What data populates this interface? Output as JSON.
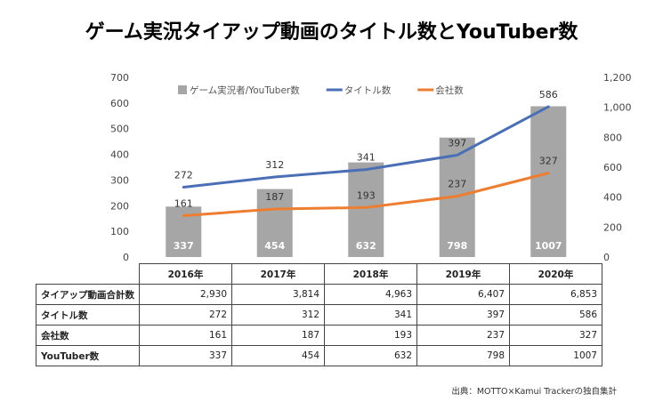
{
  "title": "ゲーム実況タイアップ動画のタイトル数とYouTuber数",
  "source": "出典：MOTTO×Kamui Trackerの独自集計",
  "table": {
    "columns": [
      "2016年",
      "2017年",
      "2018年",
      "2019年",
      "2020年"
    ],
    "rows": [
      {
        "label": "タイアップ動画合計数",
        "values": [
          "2,930",
          "3,814",
          "4,963",
          "6,407",
          "6,853"
        ]
      },
      {
        "label": "タイトル数",
        "values": [
          "272",
          "312",
          "341",
          "397",
          "586"
        ]
      },
      {
        "label": "会社数",
        "values": [
          "161",
          "187",
          "193",
          "237",
          "327"
        ]
      },
      {
        "label": "YouTuber数",
        "values": [
          "337",
          "454",
          "632",
          "798",
          "1007"
        ]
      }
    ]
  },
  "chart_data": {
    "type": "bar",
    "categories": [
      "2016年",
      "2017年",
      "2018年",
      "2019年",
      "2020年"
    ],
    "left_axis": {
      "min": 0,
      "max": 700,
      "ticks": [
        "0",
        "100",
        "200",
        "300",
        "400",
        "500",
        "600",
        "700"
      ]
    },
    "right_axis": {
      "min": 0,
      "max": 1200,
      "ticks": [
        "0",
        "200",
        "400",
        "600",
        "800",
        "1,000",
        "1,200"
      ]
    },
    "legend_position": "top",
    "series": [
      {
        "name": "ゲーム実況者/YouTuber数",
        "type": "bar",
        "axis": "right",
        "color": "#a6a6a6",
        "label_color": "#ffffff",
        "values": [
          337,
          454,
          632,
          798,
          1007
        ],
        "labels": [
          "337",
          "454",
          "632",
          "798",
          "1007"
        ]
      },
      {
        "name": "タイトル数",
        "type": "line",
        "axis": "left",
        "color": "#4a6fb5",
        "label_color": "#333333",
        "values": [
          272,
          312,
          341,
          397,
          586
        ],
        "labels": [
          "272",
          "312",
          "341",
          "397",
          "586"
        ]
      },
      {
        "name": "会社数",
        "type": "line",
        "axis": "left",
        "color": "#ed7d31",
        "label_color": "#333333",
        "values": [
          161,
          187,
          193,
          237,
          327
        ],
        "labels": [
          "161",
          "187",
          "193",
          "237",
          "327"
        ]
      }
    ]
  }
}
